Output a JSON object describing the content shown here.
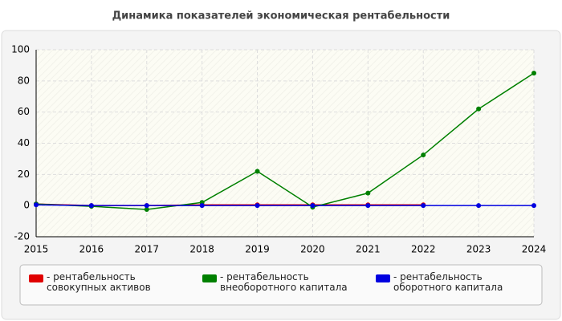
{
  "chart_data": {
    "type": "line",
    "title": "Динамика показателей экономическая рентабельности",
    "categories": [
      "2015",
      "2016",
      "2017",
      "2018",
      "2019",
      "2020",
      "2021",
      "2022",
      "2023",
      "2024"
    ],
    "series": [
      {
        "name": "- рентабельность совокупных активов",
        "color": "#e00000",
        "values": [
          1,
          0,
          0,
          0.5,
          0.5,
          0.5,
          0.5,
          0.5,
          null,
          null
        ]
      },
      {
        "name": "- рентабельность внеоборотного капитала",
        "color": "#008000",
        "values": [
          1,
          -0.5,
          -2.5,
          2,
          22,
          -1,
          8,
          32.5,
          62,
          85
        ]
      },
      {
        "name": "- рентабельность оборотного капитала",
        "color": "#0000e0",
        "values": [
          0.5,
          0,
          0,
          0,
          0,
          0,
          0,
          0,
          0,
          0
        ]
      }
    ],
    "ylim": [
      -20,
      100
    ],
    "yticks": [
      -20,
      0,
      20,
      40,
      60,
      80,
      100
    ],
    "grid": true
  }
}
